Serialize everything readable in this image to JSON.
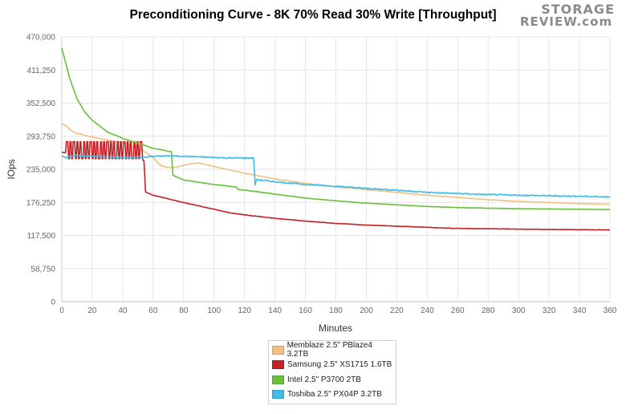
{
  "chart_data": {
    "type": "line",
    "title": "Preconditioning Curve - 8K 70% Read 30% Write [Throughput]",
    "xlabel": "Minutes",
    "ylabel": "IOps",
    "xlim": [
      0,
      360
    ],
    "ylim": [
      0,
      470000
    ],
    "x_ticks": [
      0,
      20,
      40,
      60,
      80,
      100,
      120,
      140,
      160,
      180,
      200,
      220,
      240,
      260,
      280,
      300,
      320,
      340,
      360
    ],
    "y_ticks": [
      0,
      58750,
      117500,
      176250,
      235000,
      293750,
      352500,
      411250,
      470000
    ],
    "x_tick_labels": [
      "0",
      "20",
      "40",
      "60",
      "80",
      "100",
      "120",
      "140",
      "160",
      "180",
      "200",
      "220",
      "240",
      "260",
      "280",
      "300",
      "320",
      "340",
      "360"
    ],
    "y_tick_labels": [
      "0",
      "58,750",
      "117,500",
      "176,250",
      "235,000",
      "293,750",
      "352,500",
      "411,250",
      "470,000"
    ],
    "grid": true,
    "legend_position": "bottom-center",
    "series": [
      {
        "name": "Memblaze 2.5\" PBlaze4 3.2TB",
        "color": "#f1bf80",
        "x": [
          0,
          3,
          6,
          10,
          20,
          30,
          40,
          47,
          53,
          56,
          60,
          65,
          70,
          75,
          80,
          85,
          90,
          100,
          120,
          140,
          160,
          180,
          200,
          220,
          240,
          260,
          280,
          300,
          320,
          340,
          360
        ],
        "y": [
          316000,
          312000,
          304000,
          299000,
          292000,
          287000,
          282000,
          276000,
          268000,
          264000,
          255000,
          242000,
          238000,
          239000,
          242000,
          245000,
          246000,
          240000,
          228000,
          218000,
          210000,
          204000,
          199000,
          194000,
          189000,
          185000,
          181000,
          178000,
          176000,
          174000,
          173000
        ]
      },
      {
        "name": "Samsung 2.5\" XS1715 1.6TB",
        "color": "#c42127",
        "x": [
          0,
          20,
          40,
          50,
          54,
          55,
          60,
          80,
          100,
          110,
          120,
          140,
          160,
          180,
          200,
          220,
          240,
          260,
          280,
          300,
          320,
          340,
          360
        ],
        "y": [
          265000,
          262000,
          258000,
          253000,
          250000,
          195000,
          189000,
          176000,
          164000,
          158000,
          154000,
          148000,
          143000,
          139000,
          136000,
          134000,
          132000,
          130000,
          129500,
          128800,
          128300,
          127800,
          127500
        ],
        "oscillation": {
          "x_start": 3,
          "x_end": 53,
          "period_min": 2.2,
          "high": 284000,
          "low": 254000
        }
      },
      {
        "name": "Intel 2.5\" P3700 2TB",
        "color": "#6bbf3a",
        "x": [
          0,
          2,
          5,
          10,
          15,
          20,
          30,
          40,
          50,
          55,
          60,
          65,
          70,
          72,
          73,
          75,
          80,
          90,
          100,
          110,
          115,
          116,
          120,
          140,
          160,
          180,
          200,
          220,
          240,
          260,
          280,
          300,
          320,
          340,
          360
        ],
        "y": [
          450000,
          430000,
          398000,
          360000,
          337000,
          322000,
          301000,
          290000,
          281000,
          277000,
          272000,
          270000,
          267000,
          266000,
          225000,
          222000,
          216000,
          212000,
          208000,
          205000,
          203000,
          199000,
          198000,
          191000,
          184000,
          179000,
          175000,
          172000,
          169000,
          167000,
          166000,
          165000,
          164500,
          164000,
          163500
        ]
      },
      {
        "name": "Toshiba 2.5\" PX04P 3.2TB",
        "color": "#3fbce8",
        "x": [
          0,
          3,
          10,
          20,
          30,
          40,
          50,
          60,
          70,
          80,
          90,
          100,
          110,
          120,
          126,
          127,
          128,
          130,
          140,
          160,
          180,
          200,
          220,
          240,
          260,
          280,
          300,
          320,
          340,
          360
        ],
        "y": [
          258000,
          256000,
          260000,
          258000,
          257000,
          256000,
          256000,
          258000,
          259000,
          258000,
          257000,
          256000,
          255000,
          255000,
          255000,
          208000,
          217000,
          216000,
          213000,
          208000,
          205000,
          201000,
          198000,
          194000,
          192000,
          190000,
          189000,
          188000,
          187000,
          186000
        ]
      }
    ]
  },
  "logo": {
    "line1": "STORAGE",
    "line2": "REVIEW.com"
  }
}
